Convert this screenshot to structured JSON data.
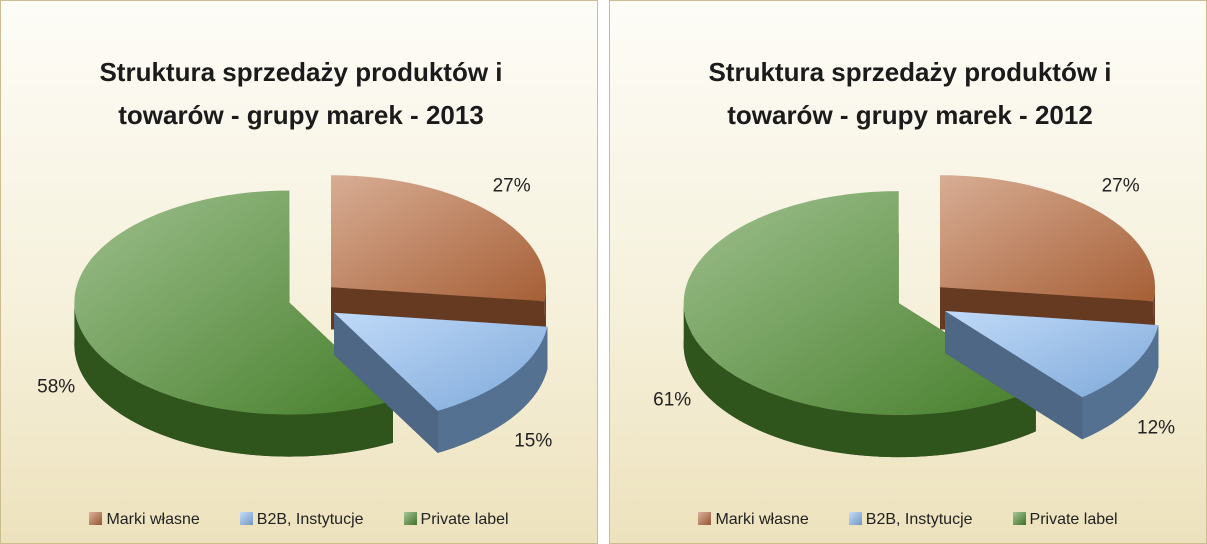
{
  "chart_data": [
    {
      "type": "pie",
      "title": "Struktura sprzedaży produktów i towarów - grupy marek - 2013",
      "categories": [
        "Marki własne",
        "B2B, Instytucje",
        "Private label"
      ],
      "values": [
        27,
        15,
        58
      ],
      "value_labels": [
        "27%",
        "15%",
        "58%"
      ],
      "colors": [
        "#b8693c",
        "#8dbcf2",
        "#4f8d31"
      ],
      "legend": "bottom"
    },
    {
      "type": "pie",
      "title": "Struktura sprzedaży produktów i towarów - grupy marek - 2012",
      "categories": [
        "Marki własne",
        "B2B, Instytucje",
        "Private label"
      ],
      "values": [
        27,
        12,
        61
      ],
      "value_labels": [
        "27%",
        "12%",
        "61%"
      ],
      "colors": [
        "#b8693c",
        "#8dbcf2",
        "#4f8d31"
      ],
      "legend": "bottom"
    }
  ]
}
